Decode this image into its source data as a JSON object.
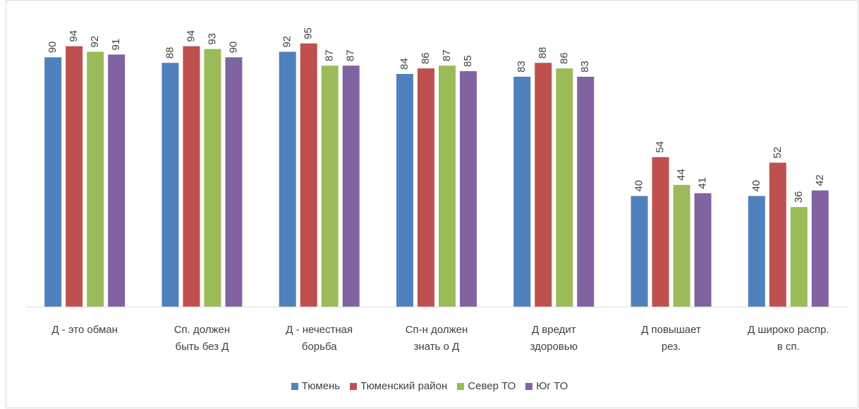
{
  "chart_data": {
    "type": "bar",
    "categories": [
      "Д - это обман",
      "Сп. должен быть без Д",
      "Д - нечестная борьба",
      "Сп-н должен знать о Д",
      "Д вредит здоровью",
      "Д повышает рез.",
      "Д широко распр. в сп."
    ],
    "series": [
      {
        "name": "Тюмень",
        "color": "#4f81bd",
        "values": [
          90,
          88,
          92,
          84,
          83,
          40,
          40
        ]
      },
      {
        "name": "Тюменский район",
        "color": "#c0504d",
        "values": [
          94,
          94,
          95,
          86,
          88,
          54,
          52
        ]
      },
      {
        "name": "Север ТО",
        "color": "#9bbb59",
        "values": [
          92,
          93,
          87,
          87,
          86,
          44,
          36
        ]
      },
      {
        "name": "Юг ТО",
        "color": "#8064a2",
        "values": [
          91,
          90,
          87,
          85,
          83,
          41,
          42
        ]
      }
    ],
    "ylim": [
      0,
      100
    ],
    "legend": "bottom"
  }
}
